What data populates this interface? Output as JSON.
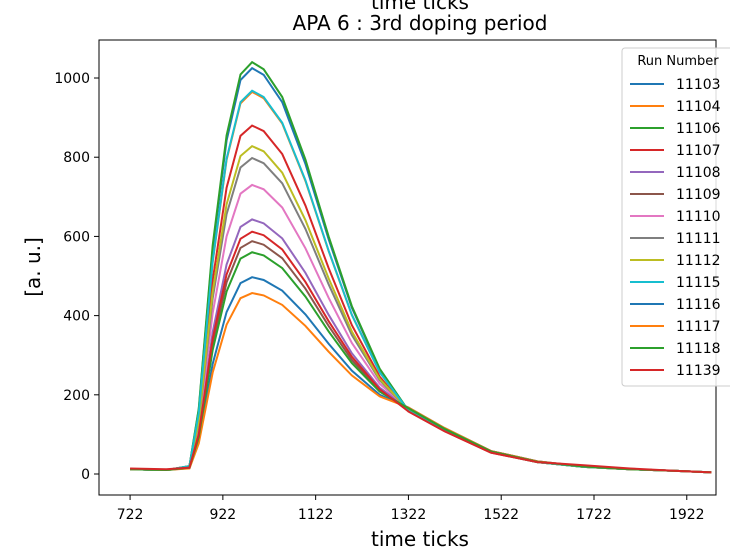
{
  "chart_data": {
    "type": "line",
    "super_title": "time ticks",
    "title": "APA 6 :  3rd doping period",
    "x_label": "time ticks",
    "y_label": "[a. u.]",
    "legend_title": "Run Number",
    "legend": "upper right",
    "grid": false,
    "xlim": [
      655,
      1985
    ],
    "ylim": [
      -53,
      1096
    ],
    "xticks": [
      722,
      922,
      1122,
      1322,
      1522,
      1722,
      1922
    ],
    "yticks": [
      0,
      200,
      400,
      600,
      800,
      1000
    ],
    "x": [
      722,
      800,
      850,
      870,
      900,
      930,
      960,
      985,
      1010,
      1050,
      1100,
      1150,
      1200,
      1260,
      1322,
      1400,
      1500,
      1600,
      1700,
      1800,
      1900,
      1975
    ],
    "series": [
      {
        "name": "11103",
        "color": "#1f77b4",
        "values": [
          12,
          10,
          20,
          162,
          568,
          842,
          995,
          1025,
          1008,
          939,
          783,
          593,
          420,
          264,
          160,
          110,
          55,
          30,
          18,
          12,
          8,
          4
        ]
      },
      {
        "name": "11104",
        "color": "#ff7f0e",
        "values": [
          12,
          10,
          20,
          153,
          535,
          793,
          936,
          965,
          949,
          885,
          740,
          563,
          402,
          257,
          160,
          110,
          55,
          30,
          18,
          12,
          8,
          4
        ]
      },
      {
        "name": "11106",
        "color": "#2ca02c",
        "values": [
          12,
          10,
          20,
          165,
          577,
          855,
          1009,
          1040,
          1022,
          952,
          794,
          600,
          424,
          266,
          160,
          110,
          55,
          30,
          18,
          12,
          8,
          4
        ]
      },
      {
        "name": "11107",
        "color": "#d62728",
        "values": [
          12,
          10,
          19,
          140,
          489,
          723,
          854,
          880,
          866,
          808,
          678,
          520,
          376,
          246,
          158,
          108,
          54,
          30,
          18,
          12,
          8,
          4
        ]
      },
      {
        "name": "11108",
        "color": "#9467bd",
        "values": [
          12,
          10,
          16,
          105,
          358,
          529,
          624,
          643,
          633,
          595,
          508,
          402,
          305,
          218,
          165,
          115,
          58,
          32,
          19,
          12,
          8,
          4
        ]
      },
      {
        "name": "11109",
        "color": "#8c564b",
        "values": [
          12,
          10,
          16,
          97,
          328,
          484,
          571,
          588,
          579,
          545,
          468,
          374,
          288,
          211,
          163,
          113,
          57,
          31,
          19,
          12,
          8,
          4
        ]
      },
      {
        "name": "11110",
        "color": "#e377c2",
        "values": [
          12,
          10,
          17,
          118,
          406,
          600,
          708,
          730,
          719,
          673,
          570,
          445,
          331,
          228,
          165,
          115,
          58,
          32,
          19,
          12,
          8,
          4
        ]
      },
      {
        "name": "11111",
        "color": "#7f7f7f",
        "values": [
          12,
          10,
          18,
          128,
          443,
          656,
          774,
          798,
          785,
          734,
          619,
          479,
          351,
          237,
          162,
          111,
          55,
          30,
          18,
          12,
          8,
          4
        ]
      },
      {
        "name": "11112",
        "color": "#bcbd22",
        "values": [
          12,
          10,
          18,
          133,
          460,
          681,
          803,
          828,
          815,
          761,
          641,
          494,
          360,
          240,
          162,
          111,
          55,
          30,
          18,
          12,
          8,
          4
        ]
      },
      {
        "name": "11115",
        "color": "#17becf",
        "values": [
          12,
          10,
          20,
          154,
          537,
          796,
          939,
          968,
          952,
          887,
          742,
          564,
          402,
          257,
          160,
          110,
          55,
          30,
          18,
          12,
          8,
          4
        ]
      },
      {
        "name": "11116",
        "color": "#1f77b4",
        "values": [
          12,
          10,
          15,
          83,
          278,
          409,
          482,
          497,
          490,
          463,
          403,
          329,
          261,
          200,
          168,
          116,
          58,
          32,
          19,
          12,
          8,
          4
        ]
      },
      {
        "name": "11117",
        "color": "#ff7f0e",
        "values": [
          12,
          10,
          14,
          77,
          256,
          377,
          444,
          457,
          451,
          427,
          374,
          309,
          249,
          196,
          168,
          116,
          58,
          32,
          19,
          12,
          8,
          4
        ]
      },
      {
        "name": "11118",
        "color": "#2ca02c",
        "values": [
          12,
          10,
          16,
          93,
          313,
          461,
          544,
          560,
          552,
          520,
          448,
          360,
          280,
          208,
          166,
          114,
          57,
          31,
          19,
          12,
          8,
          4
        ]
      },
      {
        "name": "11139",
        "color": "#d62728",
        "values": [
          14,
          12,
          16,
          100,
          341,
          504,
          594,
          612,
          603,
          567,
          485,
          386,
          296,
          214,
          158,
          108,
          54,
          30,
          22,
          14,
          8,
          4
        ]
      }
    ]
  }
}
